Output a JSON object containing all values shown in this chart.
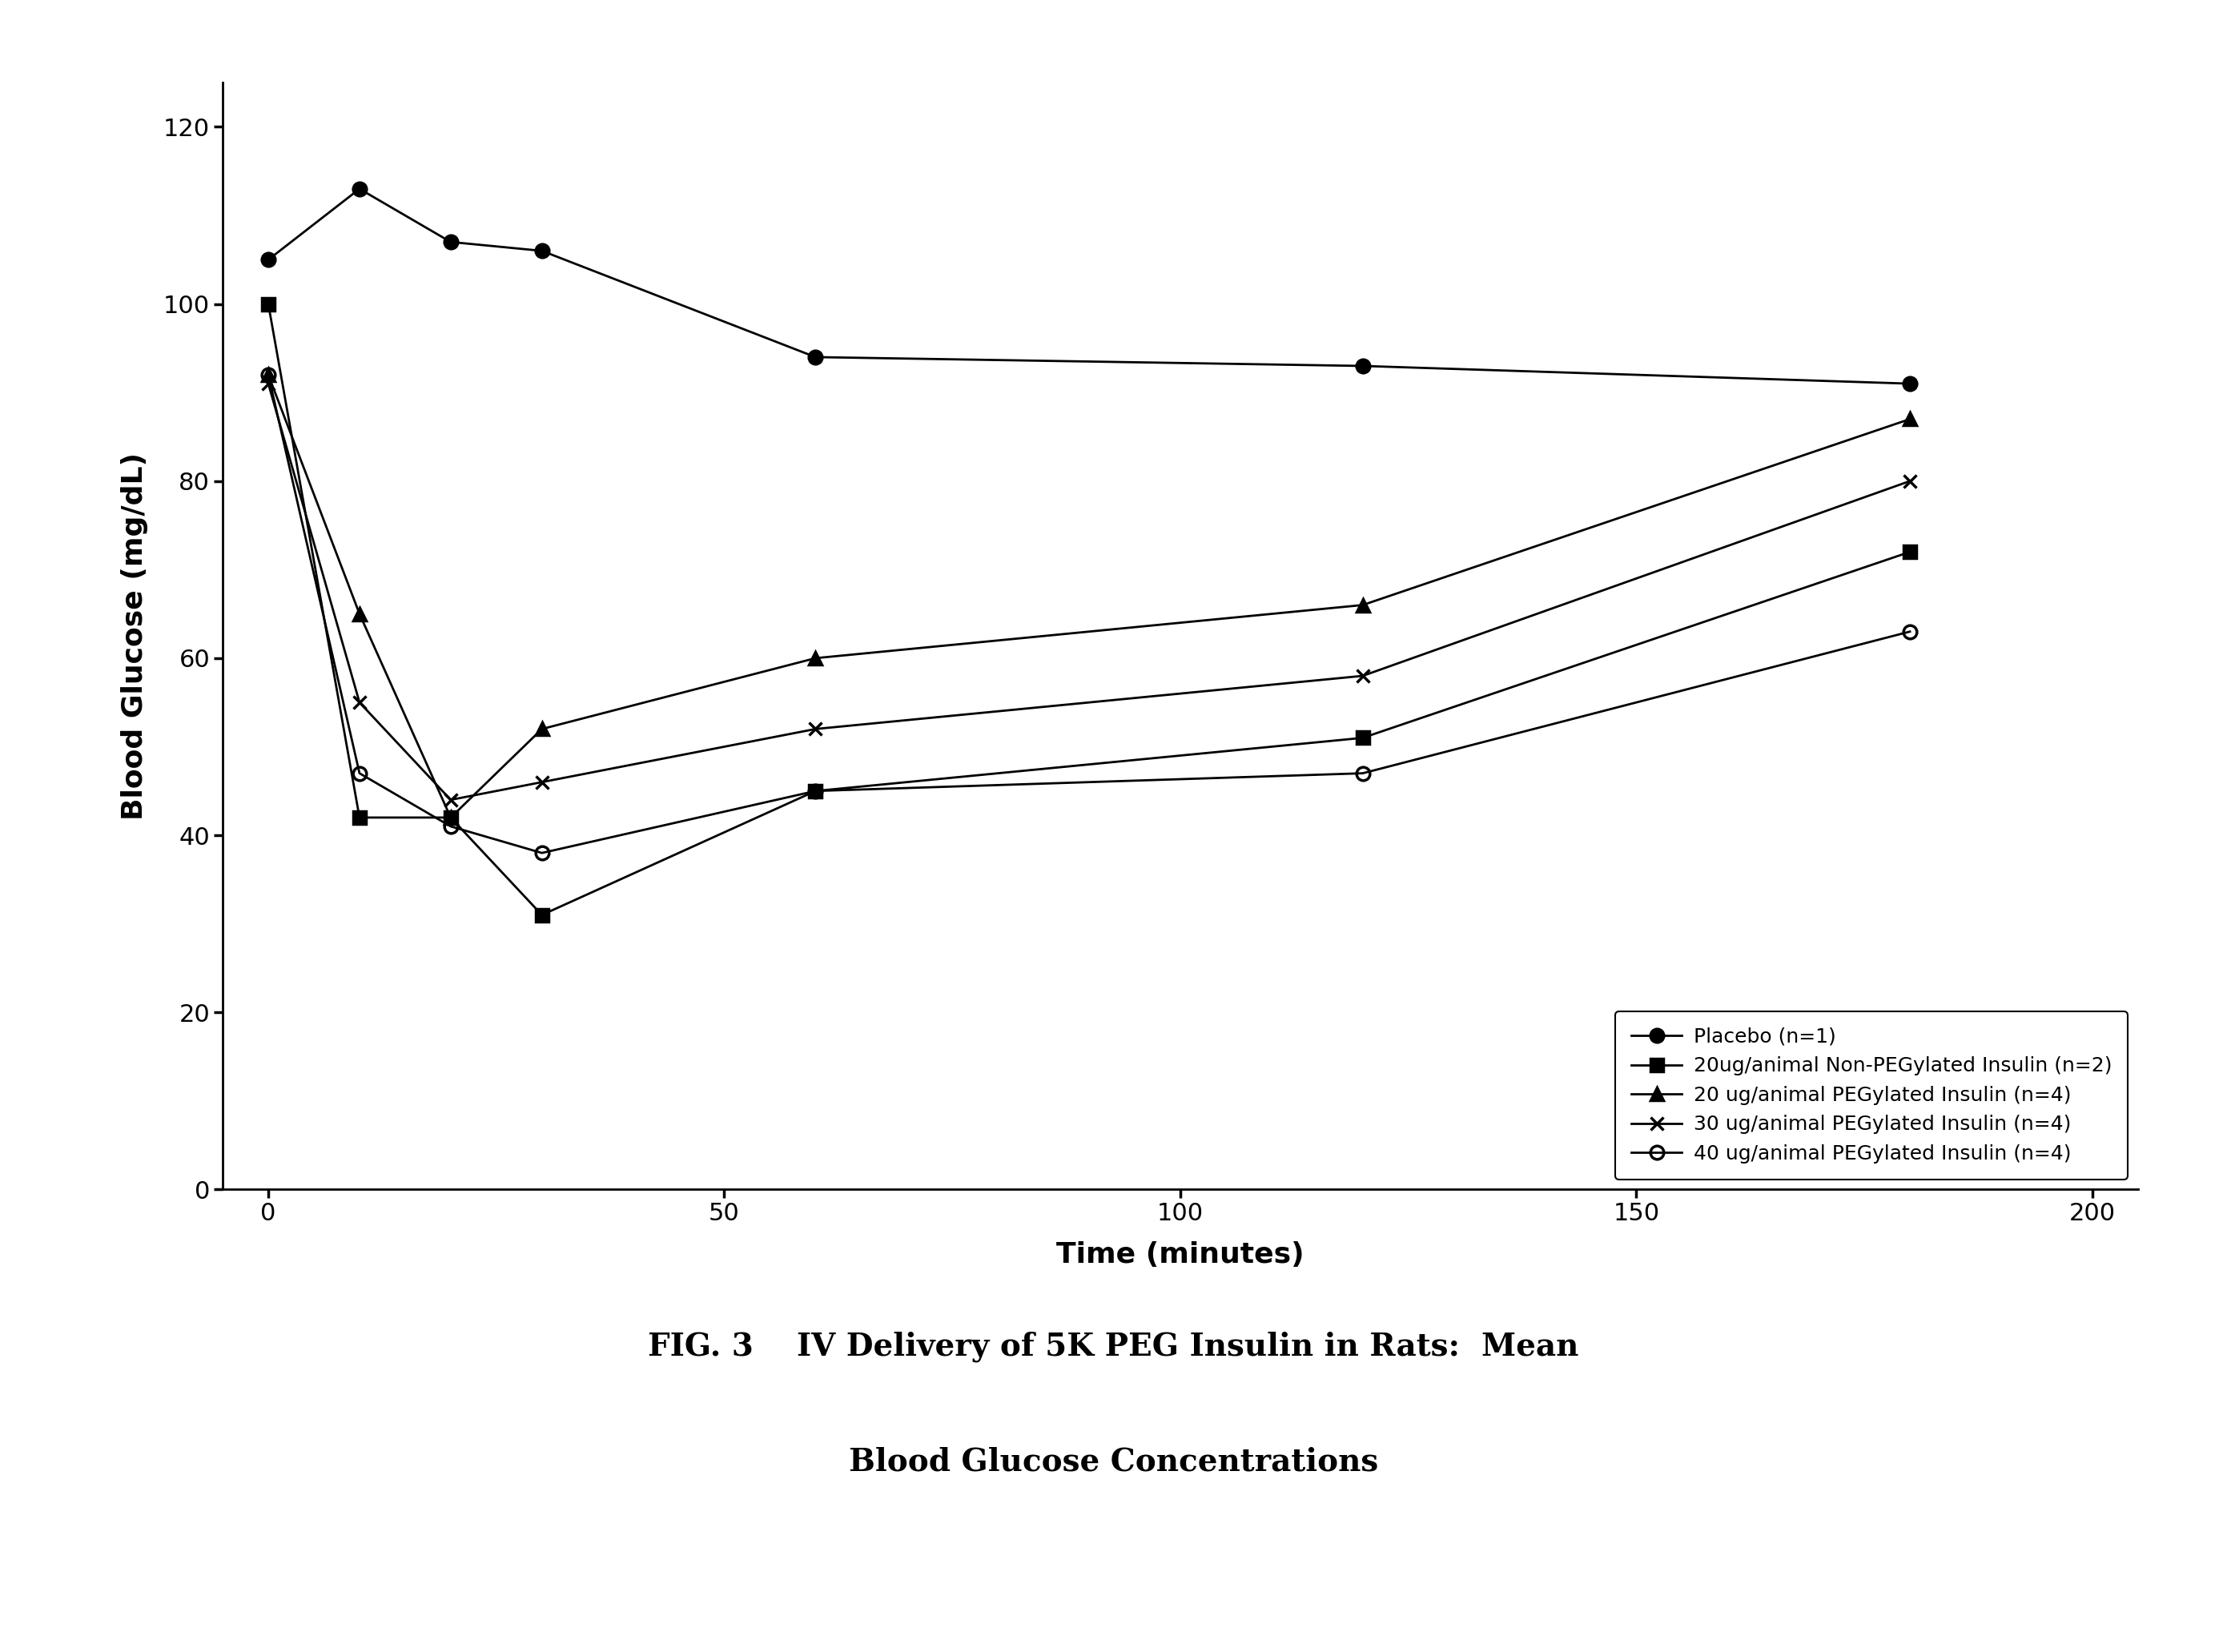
{
  "series": [
    {
      "label": "Placebo (n=1)",
      "x": [
        0,
        10,
        20,
        30,
        60,
        120,
        180
      ],
      "y": [
        105,
        113,
        107,
        106,
        94,
        93,
        91
      ],
      "marker": "o",
      "color": "#000000",
      "linestyle": "-",
      "fillstyle": "full"
    },
    {
      "label": "20ug/animal Non-PEGylated Insulin (n=2)",
      "x": [
        0,
        10,
        20,
        30,
        60,
        120,
        180
      ],
      "y": [
        100,
        42,
        42,
        31,
        45,
        51,
        72
      ],
      "marker": "s",
      "color": "#000000",
      "linestyle": "-",
      "fillstyle": "full"
    },
    {
      "label": "20 ug/animal PEGylated Insulin (n=4)",
      "x": [
        0,
        10,
        20,
        30,
        60,
        120,
        180
      ],
      "y": [
        92,
        65,
        42,
        52,
        60,
        66,
        87
      ],
      "marker": "^",
      "color": "#000000",
      "linestyle": "-",
      "fillstyle": "full"
    },
    {
      "label": "30 ug/animal PEGylated Insulin (n=4)",
      "x": [
        0,
        10,
        20,
        30,
        60,
        120,
        180
      ],
      "y": [
        91,
        55,
        44,
        46,
        52,
        58,
        80
      ],
      "marker": "x",
      "color": "#000000",
      "linestyle": "-",
      "fillstyle": "full"
    },
    {
      "label": "40 ug/animal PEGylated Insulin (n=4)",
      "x": [
        0,
        10,
        20,
        30,
        60,
        120,
        180
      ],
      "y": [
        92,
        47,
        41,
        38,
        45,
        47,
        63
      ],
      "marker": "o",
      "color": "#000000",
      "linestyle": "-",
      "fillstyle": "none"
    }
  ],
  "xlabel": "Time (minutes)",
  "ylabel": "Blood Glucose (mg/dL)",
  "xlim": [
    -5,
    205
  ],
  "ylim": [
    0,
    125
  ],
  "xticks": [
    0,
    50,
    100,
    150,
    200
  ],
  "yticks": [
    0,
    20,
    40,
    60,
    80,
    100,
    120
  ],
  "caption_line1": "FIG. 3    IV Delivery of 5K PEG Insulin in Rats:  Mean",
  "caption_line2": "Blood Glucose Concentrations",
  "legend_loc": "lower right",
  "background_color": "#ffffff",
  "markersize": 12,
  "linewidth": 2.0,
  "tick_fontsize": 22,
  "label_fontsize": 26,
  "legend_fontsize": 18,
  "caption_fontsize": 28
}
